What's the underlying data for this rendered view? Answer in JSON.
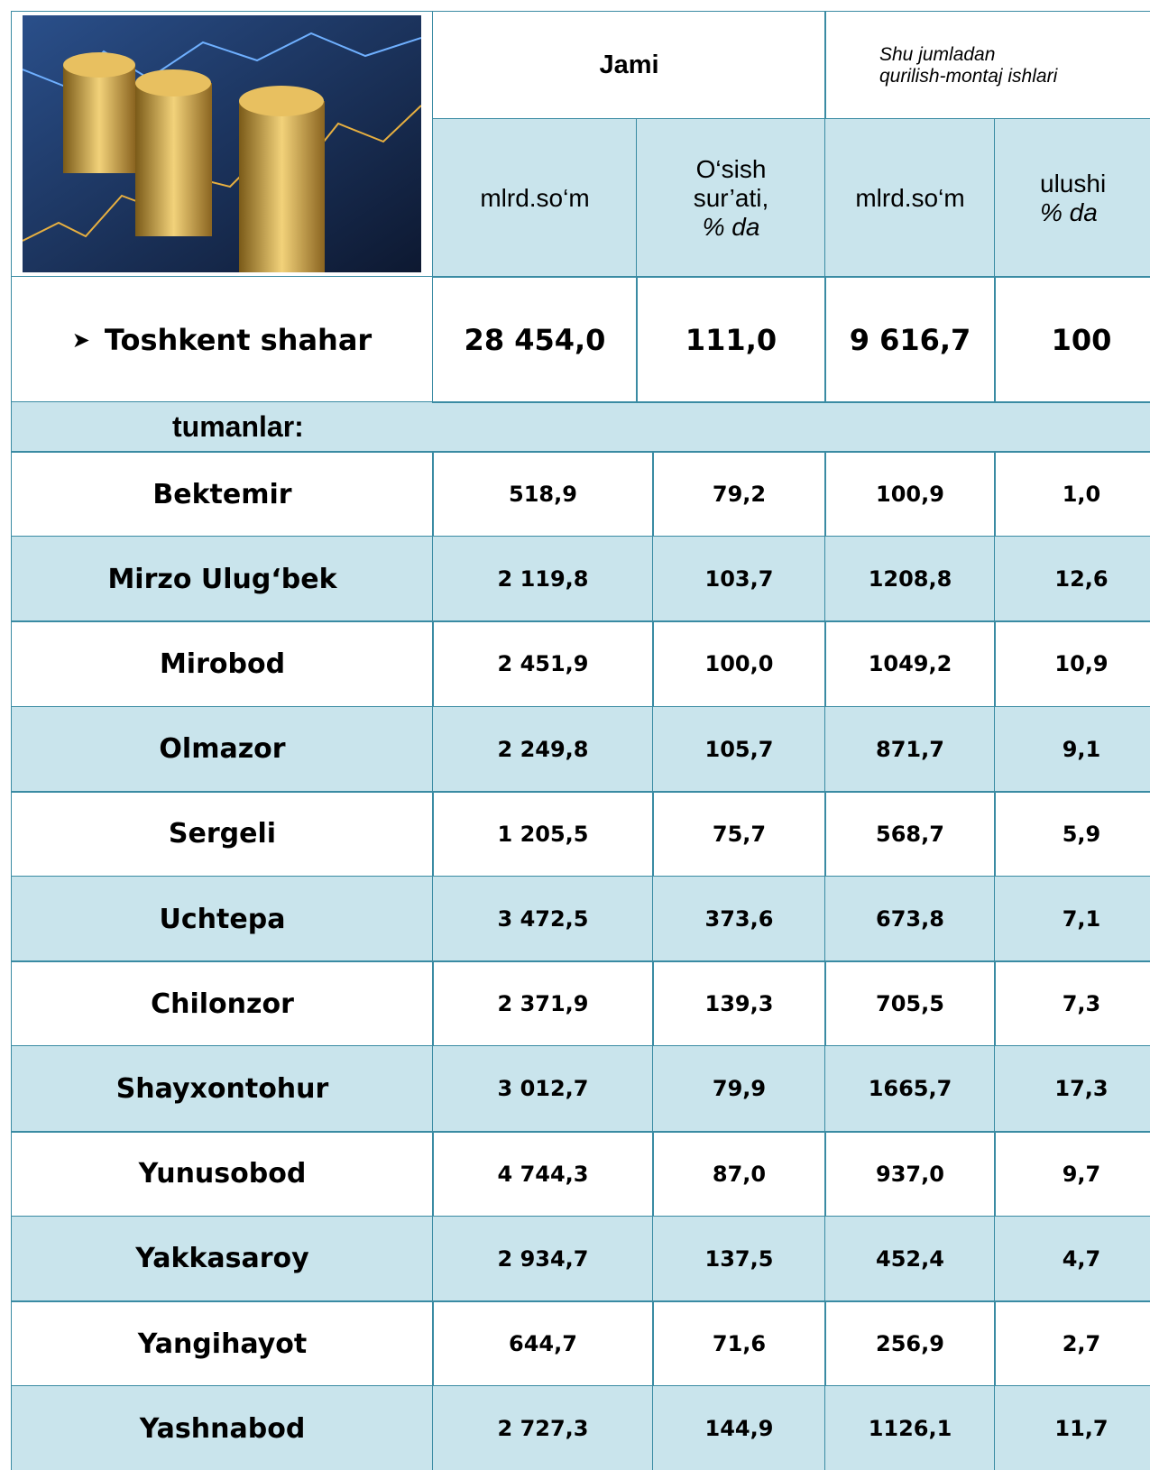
{
  "header": {
    "group1": "Jami",
    "group2_line1": "Shu jumladan",
    "group2_line2": "qurilish-montaj ishlari",
    "col1": "mlrd.so‘m",
    "col2_line1": "O‘sish",
    "col2_line2": "sur’ati,",
    "col2_line3": "% da",
    "col3": "mlrd.so‘m",
    "col4_line1": "ulushi",
    "col4_line2": "% da"
  },
  "total": {
    "name": "Toshkent shahar",
    "cells": [
      "28 454,0",
      "111,0",
      "9 616,7",
      "100"
    ]
  },
  "section": "tumanlar:",
  "rows": [
    [
      "Bektemir",
      "518,9",
      "79,2",
      "100,9",
      "1,0"
    ],
    [
      "Mirzo Ulug‘bek",
      "2 119,8",
      "103,7",
      "1208,8",
      "12,6"
    ],
    [
      "Mirobod",
      "2 451,9",
      "100,0",
      "1049,2",
      "10,9"
    ],
    [
      "Olmazor",
      "2 249,8",
      "105,7",
      "871,7",
      "9,1"
    ],
    [
      "Sergeli",
      "1 205,5",
      "75,7",
      "568,7",
      "5,9"
    ],
    [
      "Uchtepa",
      "3 472,5",
      "373,6",
      "673,8",
      "7,1"
    ],
    [
      "Chilonzor",
      "2 371,9",
      "139,3",
      "705,5",
      "7,3"
    ],
    [
      "Shayxontohur",
      "3 012,7",
      "79,9",
      "1665,7",
      "17,3"
    ],
    [
      "Yunusobod",
      "4 744,3",
      "87,0",
      "937,0",
      "9,7"
    ],
    [
      "Yakkasaroy",
      "2 934,7",
      "137,5",
      "452,4",
      "4,7"
    ],
    [
      "Yangihayot",
      "644,7",
      "71,6",
      "256,9",
      "2,7"
    ],
    [
      "Yashnabod",
      "2 727,3",
      "144,9",
      "1126,1",
      "11,7"
    ]
  ]
}
